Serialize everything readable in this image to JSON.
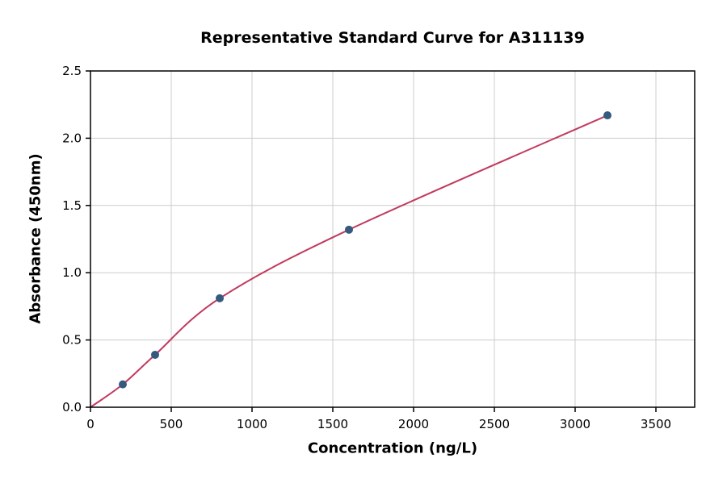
{
  "chart_data": {
    "type": "scatter",
    "title": "Representative Standard Curve for A311139",
    "xlabel": "Concentration (ng/L)",
    "ylabel": "Absorbance (450nm)",
    "xlim": [
      0,
      3740
    ],
    "ylim": [
      0,
      2.5
    ],
    "xticks": [
      0,
      500,
      1000,
      1500,
      2000,
      2500,
      3000,
      3500
    ],
    "yticks": [
      0.0,
      0.5,
      1.0,
      1.5,
      2.0,
      2.5
    ],
    "grid": true,
    "grid_color": "#cccccc",
    "axis_color": "#000000",
    "point_color": "#35597f",
    "line_color": "#c13a5e",
    "points": {
      "x": [
        200,
        400,
        800,
        1600,
        3200
      ],
      "y": [
        0.17,
        0.39,
        0.81,
        1.32,
        2.17
      ]
    },
    "fit_curve": {
      "passes_through_origin": true,
      "x": [
        0,
        200,
        400,
        800,
        1600,
        3200
      ],
      "y": [
        0.0,
        0.17,
        0.39,
        0.81,
        1.32,
        2.17
      ]
    }
  }
}
